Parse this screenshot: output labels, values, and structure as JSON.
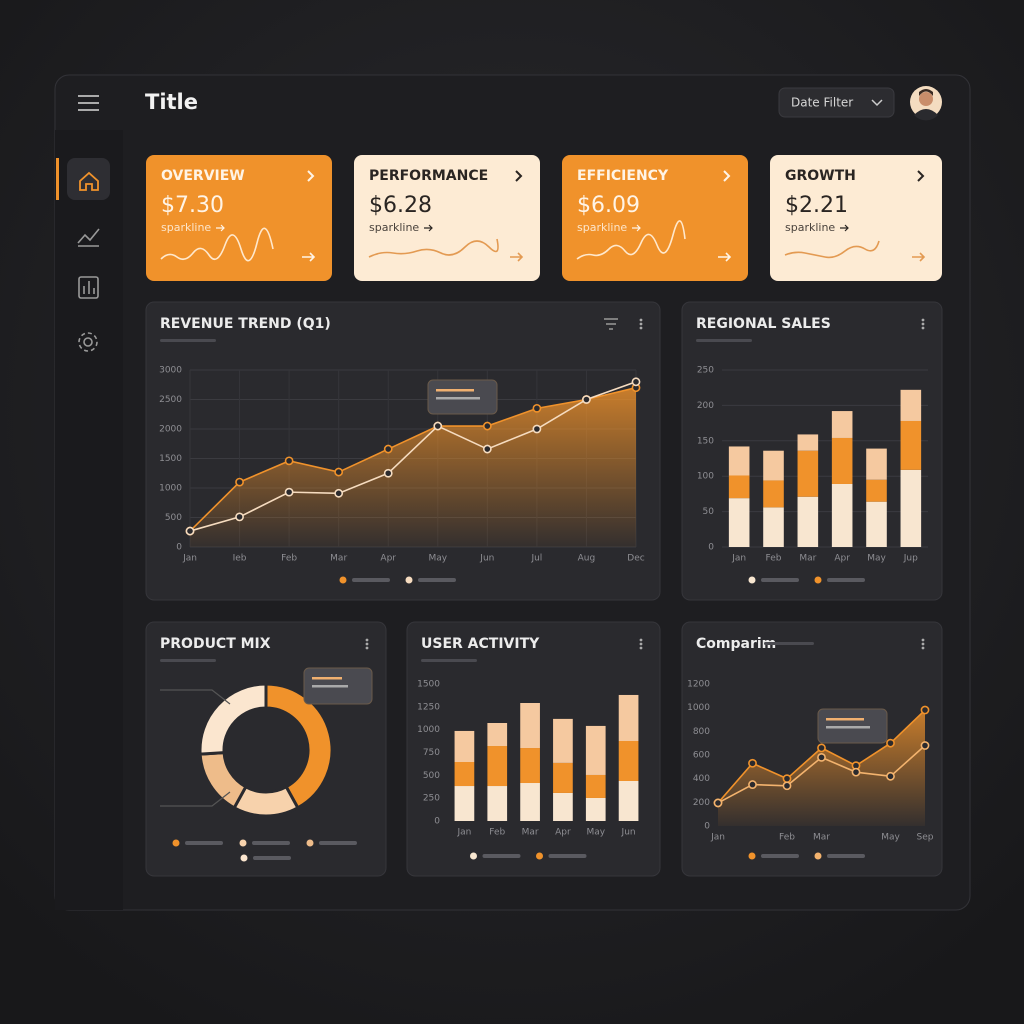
{
  "header": {
    "title": "Title",
    "date_filter": "Date Filter"
  },
  "kpi_cards": [
    {
      "label": "OVERVIEW",
      "value": "$7.30",
      "sparkline": "sparkline",
      "color": "#f0922b",
      "text_color": "#fff4e6"
    },
    {
      "label": "PERFORMANCE",
      "value": "$6.28",
      "sparkline": "sparkline",
      "color": "#fdebd4",
      "text_color": "#2a2522"
    },
    {
      "label": "EFFICIENCY",
      "value": "$6.09",
      "sparkline": "sparkline",
      "color": "#f0922b",
      "text_color": "#fff4e6"
    },
    {
      "label": "GROWTH",
      "value": "$2.21",
      "sparkline": "sparkline",
      "color": "#fdebd4",
      "text_color": "#2a2522"
    }
  ],
  "chart_data": [
    {
      "type": "line",
      "title": "REVENUE TREND (Q1)",
      "categories": [
        "Jan",
        "Ieb",
        "Feb",
        "Mar",
        "Apr",
        "May",
        "Jun",
        "Jul",
        "Aug",
        "Dec"
      ],
      "series": [
        {
          "color": "#f0922b",
          "area": true,
          "values": [
            270,
            1100,
            1460,
            1270,
            1660,
            2050,
            2050,
            2350,
            2500,
            2700
          ]
        },
        {
          "color": "#f6dcc0",
          "area": false,
          "values": [
            270,
            510,
            930,
            910,
            1250,
            2050,
            1660,
            2000,
            2500,
            2800
          ]
        }
      ],
      "ylim": [
        0,
        3000
      ],
      "yticks": [
        0,
        500,
        1000,
        1500,
        2000,
        2500,
        3000
      ],
      "grid": true
    },
    {
      "type": "bar",
      "title": "REGIONAL SALES",
      "stacked": true,
      "categories": [
        "Jan",
        "Feb",
        "Mar",
        "Apr",
        "May",
        "Jup"
      ],
      "series": [
        {
          "color": "#f8e6d0",
          "values": [
            69,
            56,
            71,
            89,
            64,
            109
          ]
        },
        {
          "color": "#f0922b",
          "values": [
            32,
            38,
            65,
            65,
            31,
            69
          ]
        },
        {
          "color": "#f5c9a0",
          "values": [
            41,
            42,
            23,
            38,
            44,
            44
          ]
        }
      ],
      "ylim": [
        0,
        250
      ],
      "yticks": [
        0,
        50,
        100,
        150,
        200,
        250
      ],
      "grid": true
    },
    {
      "type": "pie",
      "title": "PRODUCT MIX",
      "donut": true,
      "values": [
        42,
        16,
        16,
        26
      ],
      "colors": [
        "#f0922b",
        "#f7d2ac",
        "#eebc8a",
        "#fbe6cf"
      ]
    },
    {
      "type": "bar",
      "title": "USER ACTIVITY",
      "stacked": true,
      "categories": [
        "Jan",
        "Feb",
        "Mar",
        "Apr",
        "May",
        "Jun"
      ],
      "series": [
        {
          "color": "#f8e6d0",
          "values": [
            383,
            383,
            416,
            307,
            252,
            438
          ]
        },
        {
          "color": "#f0922b",
          "values": [
            263,
            438,
            383,
            329,
            252,
            438
          ]
        },
        {
          "color": "#f5c9a0",
          "values": [
            340,
            252,
            493,
            482,
            537,
            504
          ]
        }
      ],
      "ylim": [
        0,
        1500
      ],
      "yticks": [
        0,
        250,
        500,
        750,
        1000,
        1250,
        1500
      ],
      "grid": false
    },
    {
      "type": "line",
      "title": "Comparim",
      "categories": [
        "Jan",
        null,
        "Feb",
        "Mar",
        null,
        "May",
        "Sep"
      ],
      "series": [
        {
          "color": "#f0922b",
          "area": true,
          "values": [
            195,
            530,
            400,
            660,
            510,
            700,
            980
          ]
        },
        {
          "color": "#f3b36e",
          "area": false,
          "values": [
            195,
            350,
            340,
            580,
            455,
            420,
            680
          ]
        }
      ],
      "ylim": [
        0,
        1200
      ],
      "yticks": [
        0,
        200,
        400,
        600,
        800,
        1000,
        1200
      ],
      "grid": false
    }
  ]
}
